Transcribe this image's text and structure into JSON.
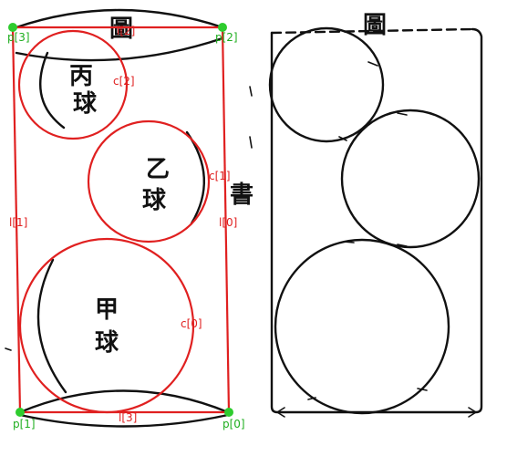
{
  "overlay": {
    "points": [
      {
        "id": "p0",
        "label": "p[0]"
      },
      {
        "id": "p1",
        "label": "p[1]"
      },
      {
        "id": "p2",
        "label": "p[2]"
      },
      {
        "id": "p3",
        "label": "p[3]"
      }
    ],
    "lines": [
      {
        "id": "l0",
        "label": "l[0]"
      },
      {
        "id": "l1",
        "label": "l[1]"
      },
      {
        "id": "l2",
        "label": "l[2]"
      },
      {
        "id": "l3",
        "label": "l[3]"
      }
    ],
    "circles": [
      {
        "id": "c0",
        "label": "c[0]"
      },
      {
        "id": "c1",
        "label": "c[1]"
      },
      {
        "id": "c2",
        "label": "c[2]"
      }
    ]
  },
  "left_figure": {
    "ball_labels": [
      {
        "id": "bing",
        "chars": [
          "丙",
          "球"
        ]
      },
      {
        "id": "yi",
        "chars": [
          "乙",
          "球"
        ]
      },
      {
        "id": "jia",
        "chars": [
          "甲",
          "球"
        ]
      }
    ],
    "top_caption": "圖",
    "side_caption": "書"
  },
  "right_figure": {
    "top_caption": "圖"
  }
}
